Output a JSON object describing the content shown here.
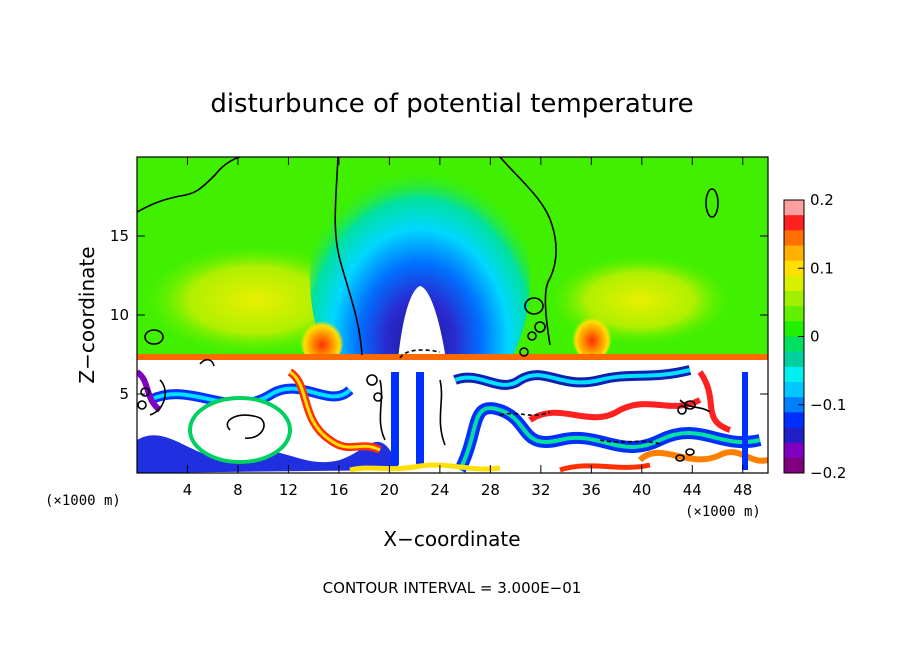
{
  "chart_data": {
    "type": "heatmap",
    "title": "disturbunce of potential temperature",
    "xlabel": "X−coordinate",
    "ylabel": "Z−coordinate",
    "x_unit": "(×1000 m)",
    "xlim": [
      0,
      50
    ],
    "ylim": [
      0,
      20
    ],
    "xticks": [
      4,
      8,
      12,
      16,
      20,
      24,
      28,
      32,
      36,
      40,
      44,
      48
    ],
    "yticks": [
      5,
      10,
      15
    ],
    "colorbar": {
      "range": [
        -0.2,
        0.2
      ],
      "tick_values": [
        0.2,
        0.1,
        0,
        -0.1,
        -0.2
      ],
      "tick_labels": [
        "0.2",
        "0.1",
        "0",
        "−0.1",
        "−0.2"
      ],
      "colors": [
        "#ffa0a0",
        "#ff2020",
        "#ff7000",
        "#ffb000",
        "#ffe000",
        "#d8f000",
        "#a0f000",
        "#60f000",
        "#20f000",
        "#00e060",
        "#00d0a0",
        "#00f0f0",
        "#00c8ff",
        "#0080ff",
        "#0030ff",
        "#2020c8",
        "#8000c0",
        "#800080"
      ]
    },
    "contour_interval_text": "CONTOUR INTERVAL = 3.000E−01"
  }
}
